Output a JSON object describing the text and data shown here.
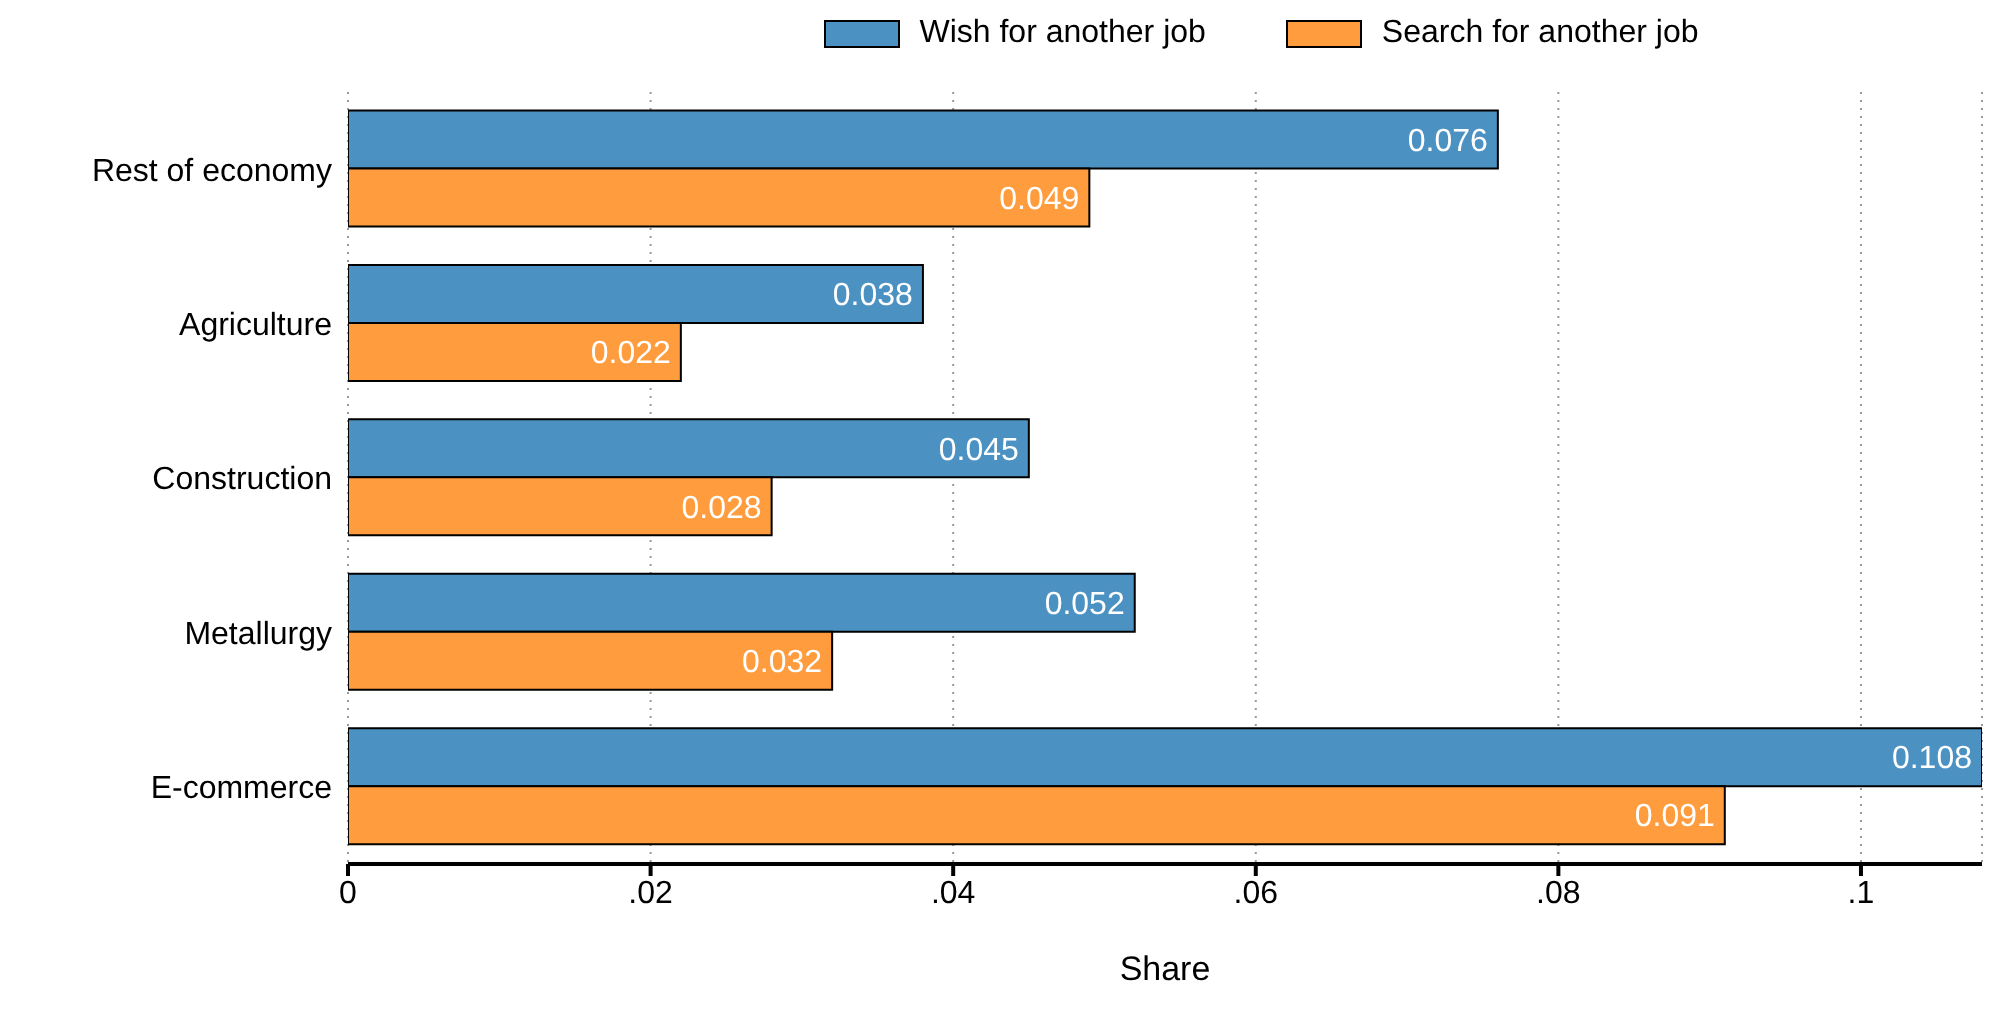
{
  "chart_data": {
    "type": "bar",
    "orientation": "horizontal",
    "xlabel": "Share",
    "categories": [
      "Rest of economy",
      "Agriculture",
      "Construction",
      "Metallurgy",
      "E-commerce"
    ],
    "series": [
      {
        "name": "Wish for another job",
        "color": "#4b91c2",
        "values": [
          0.076,
          0.038,
          0.045,
          0.052,
          0.108
        ]
      },
      {
        "name": "Search for another job",
        "color": "#ff9c3d",
        "values": [
          0.049,
          0.022,
          0.028,
          0.032,
          0.091
        ]
      }
    ],
    "xlim": [
      0,
      0.108
    ],
    "xticks": [
      0,
      {
        "value": 0.02,
        "label": ".02"
      },
      {
        "value": 0.04,
        "label": ".04"
      },
      {
        "value": 0.06,
        "label": ".06"
      },
      {
        "value": 0.08,
        "label": ".08"
      },
      {
        "value": 0.1,
        "label": ".1"
      }
    ],
    "grid": "x",
    "legend": "top",
    "data_labels": true
  }
}
